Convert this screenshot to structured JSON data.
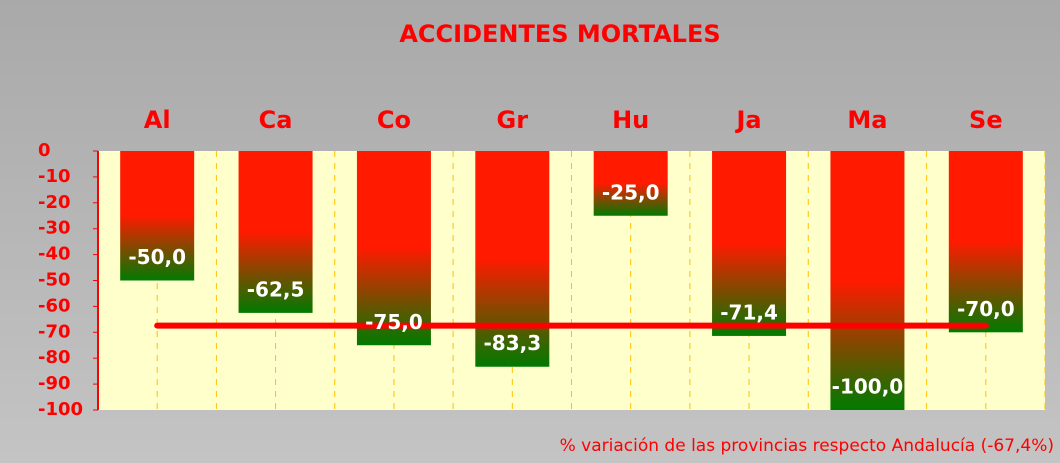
{
  "chart_data": {
    "type": "bar",
    "title": "ACCIDENTES MORTALES",
    "categories": [
      "Al",
      "Ca",
      "Co",
      "Gr",
      "Hu",
      "Ja",
      "Ma",
      "Se"
    ],
    "values": [
      -50.0,
      -62.5,
      -75.0,
      -83.3,
      -25.0,
      -71.4,
      -100.0,
      -70.0
    ],
    "value_labels": [
      "-50,0",
      "-62,5",
      "-75,0",
      "-83,3",
      "-25,0",
      "-71,4",
      "-100,0",
      "-70,0"
    ],
    "colors": [
      "#ff1a00",
      "#007a00"
    ],
    "ylim": [
      -100,
      0
    ],
    "yticks": [
      0,
      -10,
      -20,
      -30,
      -40,
      -50,
      -60,
      -70,
      -80,
      -90,
      -100
    ],
    "grid": true,
    "reference_line": {
      "value": -67.4,
      "color": "#ff0000"
    },
    "footnote": "% variación de las provincias respecto Andalucía (-67,4%)"
  }
}
